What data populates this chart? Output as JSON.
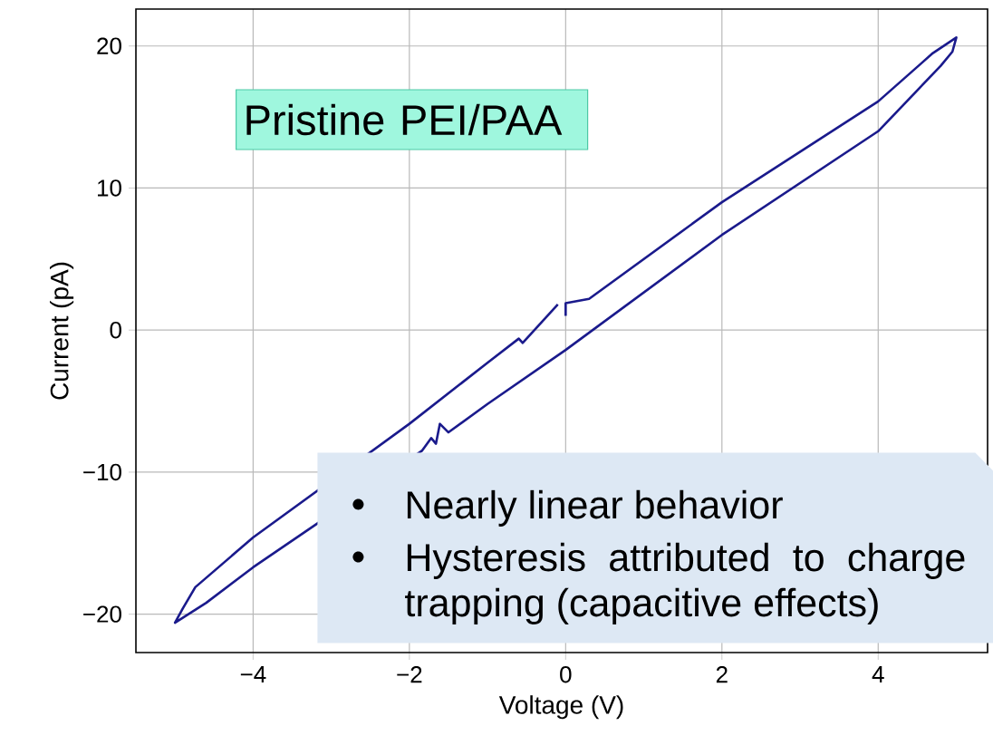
{
  "chart_data": {
    "type": "line",
    "xlabel": "Voltage (V)",
    "ylabel": "Current (pA)",
    "annotations": [
      "Pristine PEI/PAA",
      "Nearly linear behavior",
      "Hysteresis attributed to charge trapping (capacitive effects)"
    ],
    "series": [
      {
        "color": "#1a1a8c",
        "x": [
          0,
          0,
          0.3,
          2,
          4,
          4.7,
          5,
          4.95,
          4.8,
          4,
          2,
          0,
          -1,
          -1.5,
          -1.61,
          -1.66,
          -1.72,
          -1.84,
          -3.2,
          -4,
          -4.6,
          -5,
          -4.9,
          -4.74,
          -4,
          -2,
          -1,
          -0.6,
          -0.55,
          -0.1
        ],
        "values": [
          1.0,
          1.9,
          2.2,
          9.0,
          16.1,
          19.5,
          20.6,
          19.6,
          18.6,
          14.0,
          6.7,
          -1.4,
          -5.2,
          -7.2,
          -6.6,
          -8.0,
          -7.6,
          -8.5,
          -13.7,
          -16.7,
          -19.2,
          -20.6,
          -19.6,
          -18.1,
          -14.6,
          -6.6,
          -2.3,
          -0.6,
          -0.9,
          1.8
        ]
      }
    ],
    "xlim": [
      -5.5,
      5.4
    ],
    "ylim": [
      -22.7,
      22.6
    ],
    "xticks": [
      {
        "value": -4,
        "label": "−4"
      },
      {
        "value": -2,
        "label": "−2"
      },
      0,
      2,
      4
    ],
    "yticks": [
      {
        "value": -20,
        "label": "−20"
      },
      {
        "value": -10,
        "label": "−10"
      },
      0,
      10,
      20
    ],
    "grid": true,
    "marker": "none"
  }
}
